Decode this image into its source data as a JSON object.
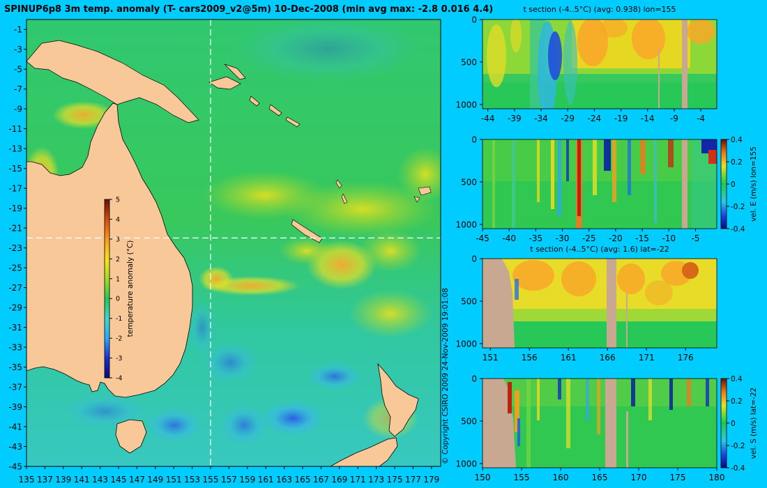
{
  "page": {
    "title": "SPINUP6p8 3m temp. anomaly (T- cars2009_v2@5m) 10-Dec-2008 (min avg max: -2.8 0.016 4.4)",
    "copyright": "© Copyright CSIRO 2009   24-Nov-2009 19:01:08",
    "colors": {
      "background": "#00ccff",
      "land": "#f8c898",
      "section_land": "#c8a890"
    }
  },
  "chart_data": [
    {
      "type": "heatmap",
      "id": "map",
      "title": "SPINUP6p8 3m temp. anomaly (T- cars2009_v2@5m) 10-Dec-2008 (min avg max: -2.8 0.016 4.4)",
      "xlim": [
        135,
        180
      ],
      "ylim": [
        -45,
        0
      ],
      "xticks": [
        "135",
        "137",
        "139",
        "141",
        "143",
        "145",
        "147",
        "149",
        "151",
        "153",
        "155",
        "157",
        "159",
        "161",
        "163",
        "165",
        "167",
        "169",
        "171",
        "173",
        "175",
        "177",
        "179"
      ],
      "yticks": [
        "-1",
        "-3",
        "-5",
        "-7",
        "-9",
        "-11",
        "-13",
        "-15",
        "-17",
        "-19",
        "-21",
        "-23",
        "-25",
        "-27",
        "-29",
        "-31",
        "-33",
        "-35",
        "-37",
        "-39",
        "-41",
        "-43",
        "-45"
      ],
      "section_lon": 155,
      "section_lat": -22,
      "colorbar": {
        "label": "temperature anomaly (°C)",
        "ticks": [
          "5",
          "4",
          "3",
          "2",
          "1",
          "0",
          "-1",
          "-2",
          "-3",
          "-4"
        ],
        "range": [
          -4,
          5
        ]
      },
      "stats": {
        "min": -2.8,
        "avg": 0.016,
        "max": 4.4
      }
    },
    {
      "type": "heatmap",
      "id": "t_lon",
      "title": "t section (-4..5°C) (avg: 0.938) lon=155",
      "xticks": [
        "-44",
        "-39",
        "-34",
        "-29",
        "-24",
        "-19",
        "-14",
        "-9",
        "-4"
      ],
      "xlim": [
        -45,
        -1
      ],
      "yticks": [
        "0",
        "500",
        "1000"
      ],
      "ylim": [
        0,
        1050
      ]
    },
    {
      "type": "heatmap",
      "id": "v_lon",
      "title": "",
      "xticks": [
        "-45",
        "-40",
        "-35",
        "-30",
        "-25",
        "-20",
        "-15",
        "-10",
        "-5"
      ],
      "xlim": [
        -45,
        -1
      ],
      "yticks": [
        "0",
        "500",
        "1000"
      ],
      "ylim": [
        0,
        1050
      ],
      "colorbar": {
        "label": "vel. E (m/s) lon=155",
        "ticks": [
          "0.4",
          "0.2",
          "0",
          "-0.2",
          "-0.4"
        ],
        "range": [
          -0.4,
          0.4
        ]
      }
    },
    {
      "type": "heatmap",
      "id": "t_lat",
      "title": "t section (-4..5°C) (avg: 1.6) lat=-22",
      "xticks": [
        "151",
        "156",
        "161",
        "166",
        "171",
        "176"
      ],
      "xlim": [
        150,
        180
      ],
      "yticks": [
        "0",
        "500",
        "1000"
      ],
      "ylim": [
        0,
        1050
      ]
    },
    {
      "type": "heatmap",
      "id": "v_lat",
      "title": "",
      "xticks": [
        "150",
        "155",
        "160",
        "165",
        "170",
        "175",
        "180"
      ],
      "xlim": [
        150,
        180
      ],
      "yticks": [
        "0",
        "500",
        "1000"
      ],
      "ylim": [
        0,
        1050
      ],
      "colorbar": {
        "label": "vel. S (m/s) lat=-22",
        "ticks": [
          "0.4",
          "0.2",
          "0",
          "-0.2",
          "-0.4"
        ],
        "range": [
          -0.4,
          0.4
        ]
      }
    }
  ]
}
